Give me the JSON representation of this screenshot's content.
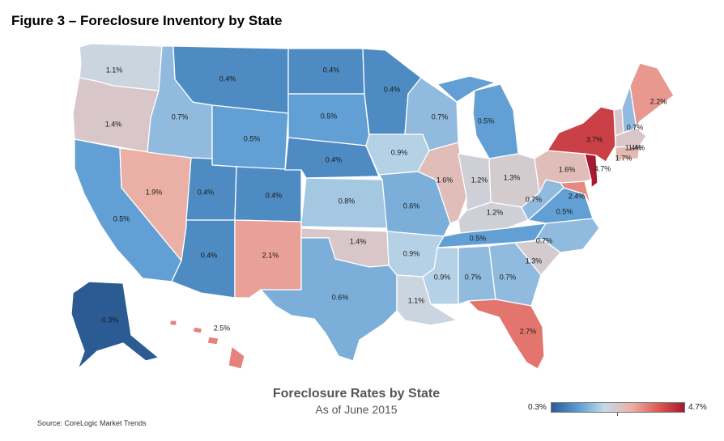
{
  "figure_title": "Figure 3 – Foreclosure Inventory by State",
  "map_title": "Foreclosure Rates by State",
  "map_subtitle": "As of June 2015",
  "source": "Source: CoreLogic Market Trends",
  "legend": {
    "min_label": "0.3%",
    "max_label": "4.7%",
    "min": 0.3,
    "max": 4.7,
    "colors": [
      "#2c5b94",
      "#5b9bd3",
      "#c5dbe9",
      "#ebb1a6",
      "#e05a55",
      "#a6192e"
    ]
  },
  "states": [
    {
      "id": "WA",
      "value": 1.1,
      "label": "1.1%"
    },
    {
      "id": "OR",
      "value": 1.4,
      "label": "1.4%"
    },
    {
      "id": "CA",
      "value": 0.5,
      "label": "0.5%"
    },
    {
      "id": "NV",
      "value": 1.9,
      "label": "1.9%"
    },
    {
      "id": "ID",
      "value": 0.7,
      "label": "0.7%"
    },
    {
      "id": "MT",
      "value": 0.4,
      "label": "0.4%"
    },
    {
      "id": "WY",
      "value": 0.5,
      "label": "0.5%"
    },
    {
      "id": "UT",
      "value": 0.4,
      "label": "0.4%"
    },
    {
      "id": "AZ",
      "value": 0.4,
      "label": "0.4%"
    },
    {
      "id": "CO",
      "value": 0.4,
      "label": "0.4%"
    },
    {
      "id": "NM",
      "value": 2.1,
      "label": "2.1%"
    },
    {
      "id": "ND",
      "value": 0.4,
      "label": "0.4%"
    },
    {
      "id": "SD",
      "value": 0.5,
      "label": "0.5%"
    },
    {
      "id": "NE",
      "value": 0.4,
      "label": "0.4%"
    },
    {
      "id": "KS",
      "value": 0.8,
      "label": "0.8%"
    },
    {
      "id": "OK",
      "value": 1.4,
      "label": "1.4%"
    },
    {
      "id": "TX",
      "value": 0.6,
      "label": "0.6%"
    },
    {
      "id": "MN",
      "value": 0.4,
      "label": "0.4%"
    },
    {
      "id": "IA",
      "value": 0.9,
      "label": "0.9%"
    },
    {
      "id": "MO",
      "value": 0.6,
      "label": "0.6%"
    },
    {
      "id": "AR",
      "value": 0.9,
      "label": "0.9%"
    },
    {
      "id": "LA",
      "value": 1.1,
      "label": "1.1%"
    },
    {
      "id": "WI",
      "value": 0.7,
      "label": "0.7%"
    },
    {
      "id": "IL",
      "value": 1.6,
      "label": "1.6%"
    },
    {
      "id": "MI",
      "value": 0.5,
      "label": "0.5%"
    },
    {
      "id": "IN",
      "value": 1.2,
      "label": "1.2%"
    },
    {
      "id": "OH",
      "value": 1.3,
      "label": "1.3%"
    },
    {
      "id": "KY",
      "value": 1.2,
      "label": "1.2%"
    },
    {
      "id": "TN",
      "value": 0.5,
      "label": "0.5%"
    },
    {
      "id": "MS",
      "value": 0.9,
      "label": "0.9%"
    },
    {
      "id": "AL",
      "value": 0.7,
      "label": "0.7%"
    },
    {
      "id": "GA",
      "value": 0.7,
      "label": "0.7%"
    },
    {
      "id": "FL",
      "value": 2.7,
      "label": "2.7%"
    },
    {
      "id": "SC",
      "value": 1.3,
      "label": "1.3%"
    },
    {
      "id": "NC",
      "value": 0.7,
      "label": "0.7%"
    },
    {
      "id": "VA",
      "value": 0.5,
      "label": "0.5%"
    },
    {
      "id": "WV",
      "value": 0.7,
      "label": "0.7%"
    },
    {
      "id": "PA",
      "value": 1.6,
      "label": "1.6%"
    },
    {
      "id": "NY",
      "value": 3.7,
      "label": "3.7%"
    },
    {
      "id": "VT",
      "value": 1.4,
      "label": "1.4%"
    },
    {
      "id": "NH",
      "value": 0.7,
      "label": "0.7%"
    },
    {
      "id": "ME",
      "value": 2.2,
      "label": "2.2%"
    },
    {
      "id": "MA",
      "value": 1.4,
      "label": "1.4%"
    },
    {
      "id": "CT",
      "value": 1.7,
      "label": "1.7%"
    },
    {
      "id": "NJ",
      "value": 4.7,
      "label": "4.7%"
    },
    {
      "id": "MD",
      "value": 2.4,
      "label": "2.4%"
    },
    {
      "id": "AK",
      "value": 0.3,
      "label": "0.3%"
    },
    {
      "id": "HI",
      "value": 2.5,
      "label": "2.5%"
    }
  ]
}
